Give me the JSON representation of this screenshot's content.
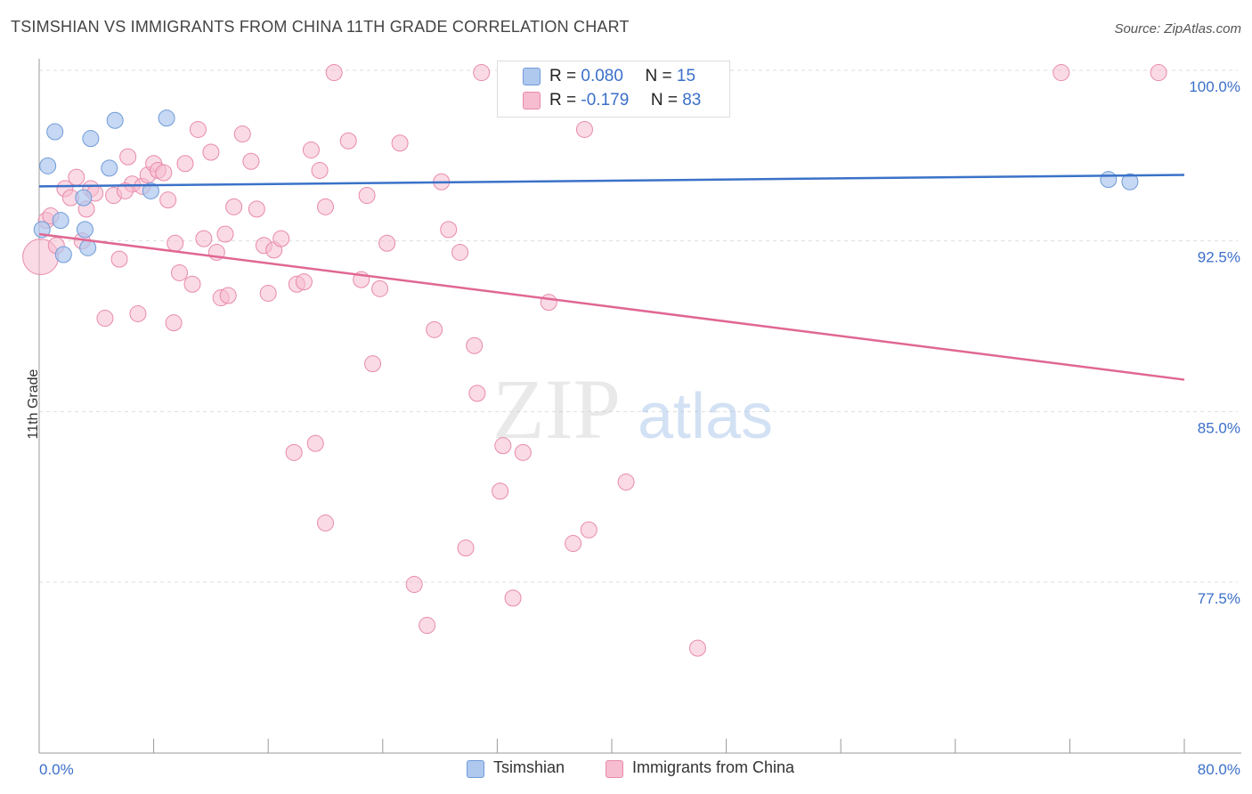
{
  "title": "TSIMSHIAN VS IMMIGRANTS FROM CHINA 11TH GRADE CORRELATION CHART",
  "source": "Source: ZipAtlas.com",
  "watermark": {
    "zip": "ZIP",
    "atlas": "atlas"
  },
  "legend_top": {
    "rows": [
      {
        "r_label": "R =",
        "r_value": "0.080",
        "n_label": "N =",
        "n_value": "15"
      },
      {
        "r_label": "R =",
        "r_value": "-0.179",
        "n_label": "N =",
        "n_value": "83"
      }
    ]
  },
  "legend_bottom": [
    {
      "label": "Tsimshian"
    },
    {
      "label": "Immigrants from China"
    }
  ],
  "colors": {
    "blue_fill": "#aec8ee",
    "blue_stroke": "#6f9bd8",
    "blue_line": "#3a72c8",
    "pink_fill": "#f6bcd0",
    "pink_stroke": "#e88aaa",
    "pink_line": "#e06793",
    "tick_label": "#3b6fc9",
    "grid": "#dddddd"
  },
  "chart_data": {
    "type": "scatter",
    "title": "TSIMSHIAN VS IMMIGRANTS FROM CHINA 11TH GRADE CORRELATION CHART",
    "xlabel": "",
    "ylabel": "11th Grade",
    "xlim": [
      0,
      80
    ],
    "ylim": [
      70.0,
      101.5
    ],
    "x_tick_labels": [
      "0.0%",
      "80.0%"
    ],
    "y_ticks": [
      77.5,
      85.0,
      92.5,
      100.0
    ],
    "y_tick_labels": [
      "77.5%",
      "85.0%",
      "92.5%",
      "100.0%"
    ],
    "grid": true,
    "legend_position": "top-center",
    "series": [
      {
        "name": "Tsimshian",
        "color": "#aec8ee",
        "trend": {
          "x": [
            0,
            80
          ],
          "y": [
            94.9,
            95.4
          ]
        },
        "points": [
          [
            0.2,
            93.0
          ],
          [
            0.6,
            95.8
          ],
          [
            1.1,
            97.3
          ],
          [
            1.5,
            93.4
          ],
          [
            1.7,
            91.9
          ],
          [
            3.1,
            94.4
          ],
          [
            3.2,
            93.0
          ],
          [
            3.4,
            92.2
          ],
          [
            3.6,
            97.0
          ],
          [
            4.9,
            95.7
          ],
          [
            5.3,
            97.8
          ],
          [
            7.8,
            94.7
          ],
          [
            8.9,
            97.9
          ],
          [
            74.7,
            95.2
          ],
          [
            76.2,
            95.1
          ]
        ]
      },
      {
        "name": "Immigrants from China",
        "color": "#f6bcd0",
        "trend": {
          "x": [
            0,
            80
          ],
          "y": [
            92.8,
            86.4
          ]
        },
        "points": [
          [
            0.1,
            91.8
          ],
          [
            0.5,
            93.4
          ],
          [
            0.8,
            93.6
          ],
          [
            1.2,
            92.3
          ],
          [
            1.8,
            94.8
          ],
          [
            2.2,
            94.4
          ],
          [
            2.6,
            95.3
          ],
          [
            3.3,
            93.9
          ],
          [
            3.6,
            94.8
          ],
          [
            3.9,
            94.6
          ],
          [
            4.6,
            89.1
          ],
          [
            5.2,
            94.5
          ],
          [
            5.6,
            91.7
          ],
          [
            6.2,
            96.2
          ],
          [
            6.5,
            95.0
          ],
          [
            6.9,
            89.3
          ],
          [
            7.2,
            94.9
          ],
          [
            7.6,
            95.4
          ],
          [
            8.0,
            95.9
          ],
          [
            8.3,
            95.6
          ],
          [
            8.7,
            95.5
          ],
          [
            9.0,
            94.3
          ],
          [
            9.4,
            88.9
          ],
          [
            9.8,
            91.1
          ],
          [
            10.2,
            95.9
          ],
          [
            10.7,
            90.6
          ],
          [
            11.1,
            97.4
          ],
          [
            11.5,
            92.6
          ],
          [
            12.0,
            96.4
          ],
          [
            12.4,
            92.0
          ],
          [
            12.7,
            90.0
          ],
          [
            13.2,
            90.1
          ],
          [
            13.6,
            94.0
          ],
          [
            14.2,
            97.2
          ],
          [
            14.8,
            96.0
          ],
          [
            15.2,
            93.9
          ],
          [
            15.7,
            92.3
          ],
          [
            16.0,
            90.2
          ],
          [
            16.4,
            92.1
          ],
          [
            16.9,
            92.6
          ],
          [
            17.8,
            83.2
          ],
          [
            18.0,
            90.6
          ],
          [
            18.5,
            90.7
          ],
          [
            19.0,
            96.5
          ],
          [
            19.3,
            83.6
          ],
          [
            19.6,
            95.6
          ],
          [
            20.0,
            80.1
          ],
          [
            20.6,
            99.9
          ],
          [
            21.6,
            96.9
          ],
          [
            22.5,
            90.8
          ],
          [
            22.9,
            94.5
          ],
          [
            23.3,
            87.1
          ],
          [
            23.8,
            90.4
          ],
          [
            24.3,
            92.4
          ],
          [
            25.2,
            96.8
          ],
          [
            26.2,
            77.4
          ],
          [
            27.1,
            75.6
          ],
          [
            27.6,
            88.6
          ],
          [
            28.1,
            95.1
          ],
          [
            28.6,
            93.0
          ],
          [
            29.4,
            92.0
          ],
          [
            29.8,
            79.0
          ],
          [
            30.4,
            87.9
          ],
          [
            30.6,
            85.8
          ],
          [
            30.9,
            99.9
          ],
          [
            32.2,
            81.5
          ],
          [
            32.4,
            83.5
          ],
          [
            33.1,
            76.8
          ],
          [
            33.8,
            83.2
          ],
          [
            33.9,
            99.9
          ],
          [
            35.6,
            89.8
          ],
          [
            37.3,
            79.2
          ],
          [
            38.1,
            97.4
          ],
          [
            38.4,
            79.8
          ],
          [
            41.0,
            81.9
          ],
          [
            46.0,
            74.6
          ],
          [
            71.4,
            99.9
          ],
          [
            78.2,
            99.9
          ],
          [
            3.0,
            92.5
          ],
          [
            6.0,
            94.7
          ],
          [
            9.5,
            92.4
          ],
          [
            13.0,
            92.8
          ],
          [
            20.0,
            94.0
          ]
        ]
      }
    ]
  }
}
